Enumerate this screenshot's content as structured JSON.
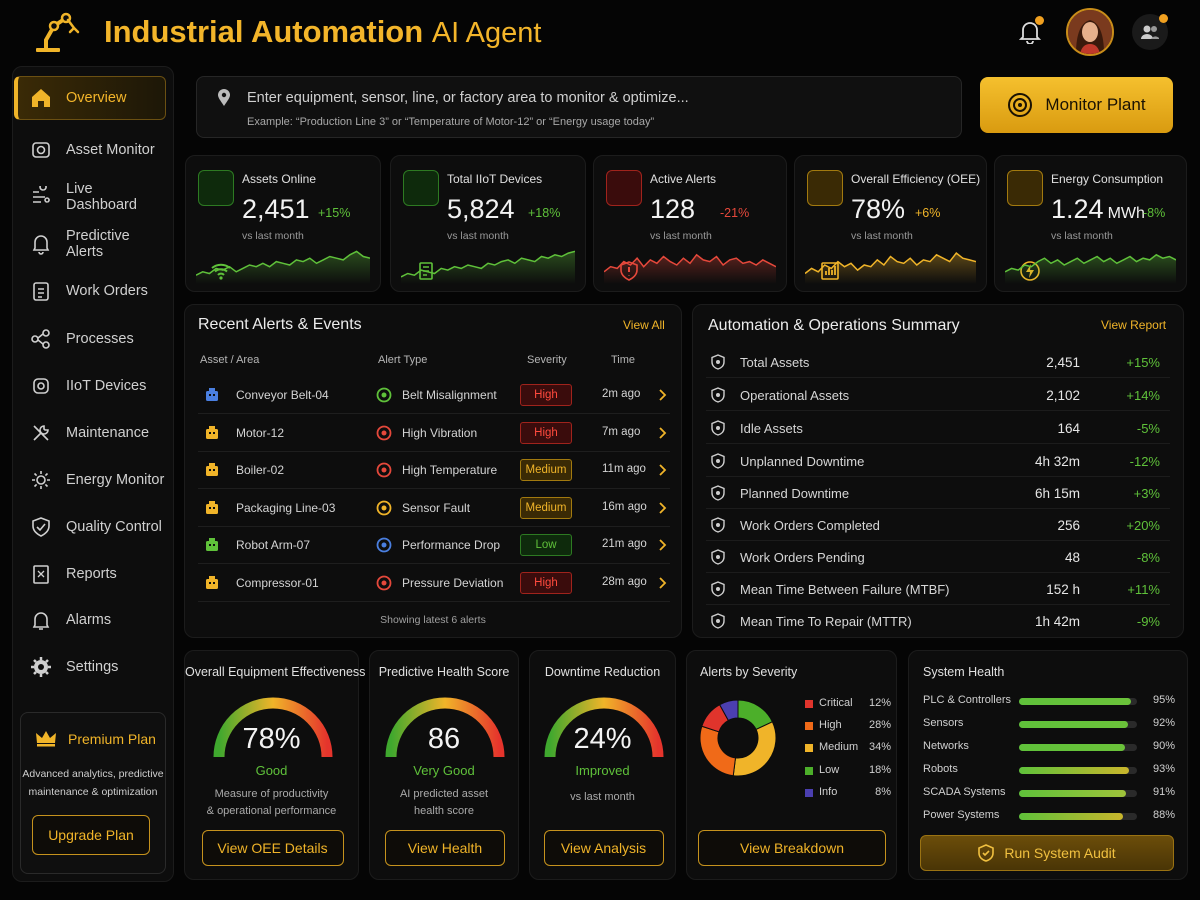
{
  "header": {
    "title_bold": "Industrial Automation",
    "title_light": "AI Agent"
  },
  "sidebar": {
    "items": [
      {
        "label": "Overview",
        "icon": "home-icon",
        "active": true
      },
      {
        "label": "Asset Monitor",
        "icon": "camera-icon"
      },
      {
        "label": "Live Dashboard",
        "icon": "dashboard-icon"
      },
      {
        "label": "Predictive Alerts",
        "icon": "bell-icon"
      },
      {
        "label": "Work Orders",
        "icon": "clipboard-icon"
      },
      {
        "label": "Processes",
        "icon": "share-icon"
      },
      {
        "label": "IIoT Devices",
        "icon": "device-icon"
      },
      {
        "label": "Maintenance",
        "icon": "wrench-icon"
      },
      {
        "label": "Energy Monitor",
        "icon": "gear-icon"
      },
      {
        "label": "Quality Control",
        "icon": "shield-check-icon"
      },
      {
        "label": "Reports",
        "icon": "report-icon"
      },
      {
        "label": "Alarms",
        "icon": "alarm-icon"
      },
      {
        "label": "Settings",
        "icon": "settings-icon"
      }
    ],
    "premium": {
      "title": "Premium Plan",
      "desc_line1": "Advanced analytics, predictive",
      "desc_line2": "maintenance & optimization",
      "button": "Upgrade Plan"
    }
  },
  "search": {
    "placeholder": "Enter equipment, sensor, line, or factory area to monitor & optimize...",
    "example": "Example: “Production Line 3” or “Temperature of Motor-12” or “Energy usage today”",
    "button": "Monitor Plant"
  },
  "stats": [
    {
      "label": "Assets Online",
      "value": "2,451",
      "unit": "",
      "change": "+15%",
      "sub": "vs last month",
      "color": "#5fc13a"
    },
    {
      "label": "Total IIoT Devices",
      "value": "5,824",
      "unit": "",
      "change": "+18%",
      "sub": "vs last month",
      "color": "#5fc13a"
    },
    {
      "label": "Active Alerts",
      "value": "128",
      "unit": "",
      "change": "-21%",
      "sub": "vs last month",
      "color": "#e5483b"
    },
    {
      "label": "Overall Efficiency (OEE)",
      "value": "78%",
      "unit": "",
      "change": "+6%",
      "sub": "vs last month",
      "color": "#f0b429"
    },
    {
      "label": "Energy Consumption",
      "value": "1.24",
      "unit": "MWh",
      "change": "-8%",
      "sub": "vs last month",
      "color": "#5fc13a"
    }
  ],
  "alerts": {
    "title": "Recent Alerts & Events",
    "view_all": "View All",
    "headers": {
      "asset": "Asset / Area",
      "type": "Alert Type",
      "severity": "Severity",
      "time": "Time"
    },
    "rows": [
      {
        "asset": "Conveyor Belt-04",
        "type": "Belt Misalignment",
        "severity": "High",
        "time": "2m ago"
      },
      {
        "asset": "Motor-12",
        "type": "High Vibration",
        "severity": "High",
        "time": "7m ago"
      },
      {
        "asset": "Boiler-02",
        "type": "High Temperature",
        "severity": "Medium",
        "time": "11m ago"
      },
      {
        "asset": "Packaging Line-03",
        "type": "Sensor Fault",
        "severity": "Medium",
        "time": "16m ago"
      },
      {
        "asset": "Robot Arm-07",
        "type": "Performance Drop",
        "severity": "Low",
        "time": "21m ago"
      },
      {
        "asset": "Compressor-01",
        "type": "Pressure Deviation",
        "severity": "High",
        "time": "28m ago"
      }
    ],
    "footer": "Showing latest 6 alerts"
  },
  "summary": {
    "title": "Automation & Operations Summary",
    "view_report": "View Report",
    "rows": [
      {
        "label": "Total Assets",
        "value": "2,451",
        "change": "+15%",
        "positive": true
      },
      {
        "label": "Operational Assets",
        "value": "2,102",
        "change": "+14%",
        "positive": true
      },
      {
        "label": "Idle Assets",
        "value": "164",
        "change": "-5%",
        "positive": true
      },
      {
        "label": "Unplanned Downtime",
        "value": "4h 32m",
        "change": "-12%",
        "positive": true
      },
      {
        "label": "Planned Downtime",
        "value": "6h 15m",
        "change": "+3%",
        "positive": true
      },
      {
        "label": "Work Orders Completed",
        "value": "256",
        "change": "+20%",
        "positive": true
      },
      {
        "label": "Work Orders Pending",
        "value": "48",
        "change": "-8%",
        "positive": true
      },
      {
        "label": "Mean Time Between Failure (MTBF)",
        "value": "152 h",
        "change": "+11%",
        "positive": true
      },
      {
        "label": "Mean Time To Repair (MTTR)",
        "value": "1h 42m",
        "change": "-9%",
        "positive": true
      }
    ]
  },
  "gauges": [
    {
      "title": "Overall Equipment Effectiveness",
      "value": "78%",
      "level": 0.78,
      "status": "Good",
      "desc1": "Measure of productivity",
      "desc2": "& operational performance",
      "button": "View OEE Details"
    },
    {
      "title": "Predictive Health Score",
      "value": "86",
      "level": 0.86,
      "status": "Very Good",
      "desc1": "AI predicted asset",
      "desc2": "health score",
      "button": "View Health"
    },
    {
      "title": "Downtime Reduction",
      "value": "24%",
      "level": 0.24,
      "status": "Improved",
      "desc1": "vs last month",
      "desc2": "",
      "button": "View Analysis"
    }
  ],
  "severity": {
    "title": "Alerts by Severity",
    "button": "View Breakdown",
    "items": [
      {
        "name": "Critical",
        "pct": "12%",
        "value": 12,
        "color": "#e0342c"
      },
      {
        "name": "High",
        "pct": "28%",
        "value": 28,
        "color": "#f06a18"
      },
      {
        "name": "Medium",
        "pct": "34%",
        "value": 34,
        "color": "#f0b429"
      },
      {
        "name": "Low",
        "pct": "18%",
        "value": 18,
        "color": "#4caf2a"
      },
      {
        "name": "Info",
        "pct": "8%",
        "value": 8,
        "color": "#4b3fb0"
      }
    ]
  },
  "health": {
    "title": "System Health",
    "button": "Run System Audit",
    "items": [
      {
        "name": "PLC & Controllers",
        "pct": "95%",
        "value": 95
      },
      {
        "name": "Sensors",
        "pct": "92%",
        "value": 92
      },
      {
        "name": "Networks",
        "pct": "90%",
        "value": 90
      },
      {
        "name": "Robots",
        "pct": "93%",
        "value": 93
      },
      {
        "name": "SCADA Systems",
        "pct": "91%",
        "value": 91
      },
      {
        "name": "Power Systems",
        "pct": "88%",
        "value": 88
      }
    ]
  }
}
